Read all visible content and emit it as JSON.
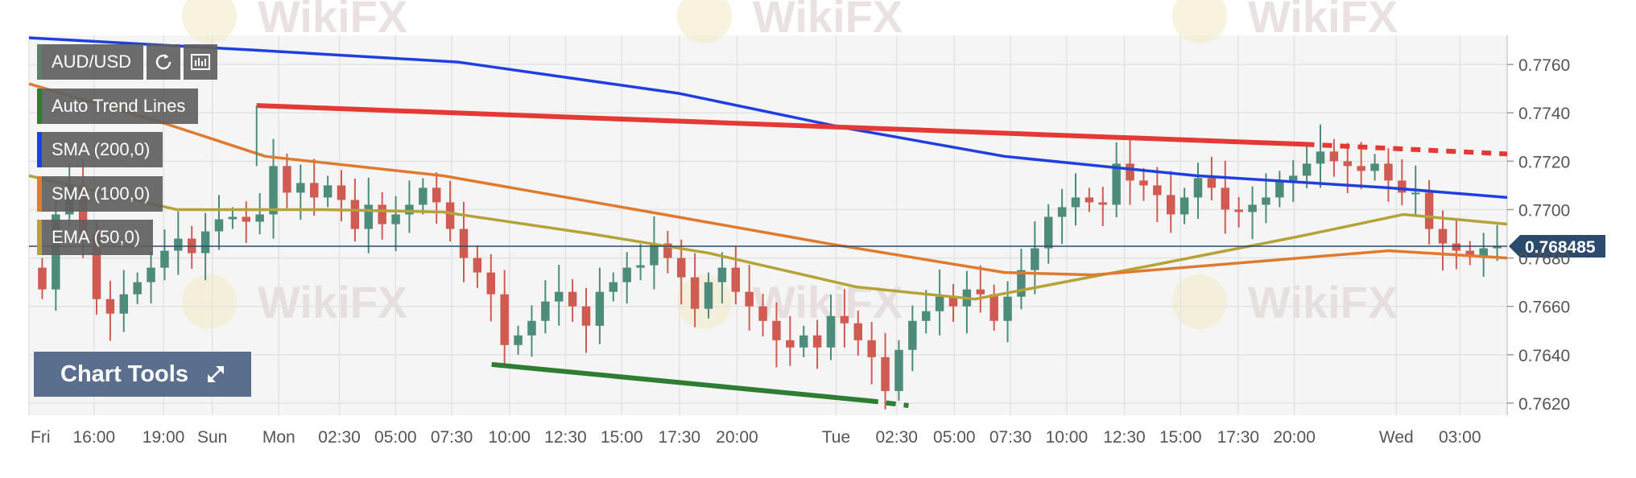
{
  "symbol_label": "AUD/USD",
  "watermark_text": "WikiFX",
  "indicators": [
    {
      "label": "Auto Trend Lines",
      "color": "#2e7d32"
    },
    {
      "label": "SMA (200,0)",
      "color": "#1f3fe0"
    },
    {
      "label": "SMA (100,0)",
      "color": "#e07a2e"
    },
    {
      "label": "EMA (50,0)",
      "color": "#b5a33a"
    }
  ],
  "chart_tools_label": "Chart Tools",
  "icons": [
    "refresh-icon",
    "bar-chart-icon",
    "expand-icon"
  ],
  "colors": {
    "bull": "#4d8b7b",
    "bear": "#cf5b52",
    "sma200": "#1f3fe0",
    "sma100": "#e07a2e",
    "ema50": "#b5a33a",
    "resistance": "#e53935",
    "support": "#2e7d32",
    "price_line": "#2c4a6b"
  },
  "chart_data": {
    "type": "candlestick",
    "title": "",
    "ylim": [
      0.7615,
      0.7772
    ],
    "xlim": [
      0,
      100
    ],
    "y_ticks": [
      0.762,
      0.764,
      0.766,
      0.768,
      0.77,
      0.772,
      0.774,
      0.776
    ],
    "y_tick_labels": [
      "0.7620",
      "0.7640",
      "0.7660",
      "0.7680",
      "0.7700",
      "0.7720",
      "0.7740",
      "0.7760"
    ],
    "x_tick_labels": [
      {
        "x": 0,
        "label": "Fri"
      },
      {
        "x": 4.4,
        "label": "16:00"
      },
      {
        "x": 9.1,
        "label": "19:00"
      },
      {
        "x": 12.4,
        "label": "Sun"
      },
      {
        "x": 16.9,
        "label": "Mon"
      },
      {
        "x": 21.0,
        "label": "02:30"
      },
      {
        "x": 24.8,
        "label": "05:00"
      },
      {
        "x": 28.6,
        "label": "07:30"
      },
      {
        "x": 32.5,
        "label": "10:00"
      },
      {
        "x": 36.3,
        "label": "12:30"
      },
      {
        "x": 40.1,
        "label": "15:00"
      },
      {
        "x": 44.0,
        "label": "17:30"
      },
      {
        "x": 47.9,
        "label": "20:00"
      },
      {
        "x": 54.6,
        "label": "Tue"
      },
      {
        "x": 58.7,
        "label": "02:30"
      },
      {
        "x": 62.6,
        "label": "05:00"
      },
      {
        "x": 66.4,
        "label": "07:30"
      },
      {
        "x": 70.2,
        "label": "10:00"
      },
      {
        "x": 74.1,
        "label": "12:30"
      },
      {
        "x": 77.9,
        "label": "15:00"
      },
      {
        "x": 81.8,
        "label": "17:30"
      },
      {
        "x": 85.6,
        "label": "20:00"
      },
      {
        "x": 92.5,
        "label": "Wed"
      },
      {
        "x": 96.8,
        "label": "03:00"
      }
    ],
    "current_price": 0.768485,
    "current_price_label": "0.768485",
    "closes": [
      0.7667,
      0.7698,
      0.771,
      0.769,
      0.7663,
      0.7657,
      0.7665,
      0.767,
      0.7676,
      0.7683,
      0.7688,
      0.7682,
      0.7691,
      0.7696,
      0.7697,
      0.7695,
      0.7698,
      0.7718,
      0.7707,
      0.7711,
      0.7705,
      0.771,
      0.7704,
      0.7692,
      0.7702,
      0.7694,
      0.7698,
      0.7702,
      0.7709,
      0.7703,
      0.7692,
      0.768,
      0.7674,
      0.7665,
      0.7644,
      0.7648,
      0.7654,
      0.7662,
      0.7666,
      0.766,
      0.7652,
      0.7666,
      0.767,
      0.7676,
      0.7677,
      0.7686,
      0.768,
      0.7672,
      0.7659,
      0.767,
      0.7676,
      0.7666,
      0.766,
      0.7654,
      0.7646,
      0.7643,
      0.7648,
      0.7643,
      0.7656,
      0.7653,
      0.7646,
      0.7639,
      0.7625,
      0.7642,
      0.7654,
      0.7658,
      0.7664,
      0.766,
      0.7667,
      0.7665,
      0.7654,
      0.7664,
      0.7675,
      0.7684,
      0.7697,
      0.7701,
      0.7705,
      0.7703,
      0.7702,
      0.7719,
      0.7712,
      0.771,
      0.7706,
      0.7698,
      0.7705,
      0.7713,
      0.7709,
      0.77,
      0.7699,
      0.7702,
      0.7705,
      0.7712,
      0.7714,
      0.7719,
      0.7724,
      0.772,
      0.7718,
      0.7716,
      0.7719,
      0.7712,
      0.7707,
      0.7707,
      0.7692,
      0.7686,
      0.7683,
      0.7681,
      0.7684,
      0.768485
    ],
    "open_first": 0.7676,
    "sma200": [
      [
        0,
        0.7771
      ],
      [
        15,
        0.7766
      ],
      [
        29,
        0.7761
      ],
      [
        44,
        0.7748
      ],
      [
        55,
        0.7734
      ],
      [
        66,
        0.7722
      ],
      [
        79,
        0.7714
      ],
      [
        92,
        0.7709
      ],
      [
        100,
        0.7705
      ]
    ],
    "sma100": [
      [
        0,
        0.7752
      ],
      [
        9,
        0.7736
      ],
      [
        16,
        0.7722
      ],
      [
        28,
        0.7714
      ],
      [
        42,
        0.7699
      ],
      [
        54,
        0.7686
      ],
      [
        66,
        0.7674
      ],
      [
        72,
        0.7673
      ],
      [
        84,
        0.7679
      ],
      [
        92,
        0.7683
      ],
      [
        100,
        0.768
      ]
    ],
    "ema50": [
      [
        0,
        0.7714
      ],
      [
        10,
        0.77
      ],
      [
        20,
        0.77
      ],
      [
        28,
        0.7699
      ],
      [
        38,
        0.769
      ],
      [
        46,
        0.7682
      ],
      [
        56,
        0.7668
      ],
      [
        64,
        0.7663
      ],
      [
        70,
        0.767
      ],
      [
        76,
        0.7677
      ],
      [
        86,
        0.7689
      ],
      [
        93,
        0.7698
      ],
      [
        100,
        0.7694
      ]
    ],
    "resistance_line": [
      [
        15.4,
        0.7743
      ],
      [
        86.3,
        0.7727
      ]
    ],
    "resistance_extension": [
      [
        86.3,
        0.7727
      ],
      [
        100,
        0.7723
      ]
    ],
    "support_line": [
      [
        31.3,
        0.7636
      ],
      [
        56.8,
        0.7621
      ]
    ],
    "support_extension": [
      [
        56.8,
        0.7621
      ],
      [
        59.5,
        0.7619
      ]
    ]
  }
}
